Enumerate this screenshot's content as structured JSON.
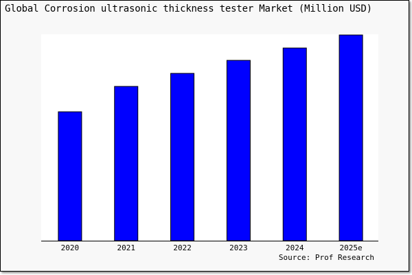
{
  "chart_data": {
    "type": "bar",
    "title": "Global Corrosion ultrasonic thickness tester Market (Million USD)",
    "categories": [
      "2020",
      "2021",
      "2022",
      "2023",
      "2024",
      "2025e"
    ],
    "values": [
      188,
      225,
      244,
      263,
      281,
      300
    ],
    "xlabel": "",
    "ylabel": "",
    "ylim": [
      0,
      300
    ],
    "grid": false,
    "y_axis_labels_shown": false,
    "bar_color": "#0000ff",
    "source": "Source: Prof Research"
  }
}
